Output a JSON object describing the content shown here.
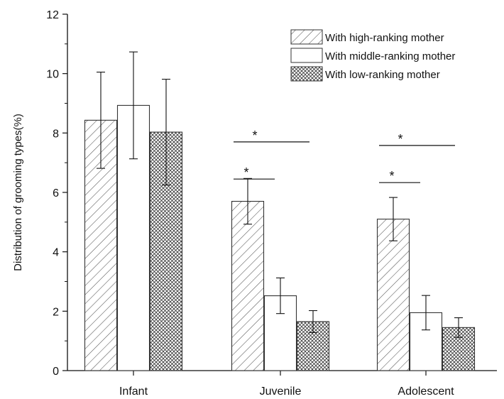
{
  "chart_data": {
    "type": "bar",
    "title": "",
    "xlabel": "",
    "ylabel": "Distribution of grooming types(%)",
    "ylim": [
      0,
      12
    ],
    "yticks": [
      0,
      2,
      4,
      6,
      8,
      10,
      12
    ],
    "categories": [
      "Infant",
      "Juvenile",
      "Adolescent"
    ],
    "grid": false,
    "legend_position": "top-right",
    "series": [
      {
        "name": "With high-ranking mother",
        "pattern": "diagonal-hatch",
        "values": [
          8.43,
          5.7,
          5.1
        ],
        "errors": [
          1.62,
          0.77,
          0.73
        ]
      },
      {
        "name": "With middle-ranking mother",
        "pattern": "open",
        "values": [
          8.93,
          2.52,
          1.95
        ],
        "errors": [
          1.8,
          0.6,
          0.58
        ]
      },
      {
        "name": "With low-ranking mother",
        "pattern": "crosshatch",
        "values": [
          8.03,
          1.65,
          1.45
        ],
        "errors": [
          1.78,
          0.37,
          0.33
        ]
      }
    ],
    "significance": [
      {
        "category": "Juvenile",
        "from": 0,
        "to": 1,
        "label": "*"
      },
      {
        "category": "Juvenile",
        "from": 0,
        "to": 2,
        "label": "*"
      },
      {
        "category": "Adolescent",
        "from": 0,
        "to": 1,
        "label": "*"
      },
      {
        "category": "Adolescent",
        "from": 0,
        "to": 2,
        "label": "*"
      }
    ]
  },
  "colors": {
    "axis": "#111111",
    "bar_stroke": "#333333",
    "bar_fill": "#ffffff",
    "hatch": "#444444"
  }
}
